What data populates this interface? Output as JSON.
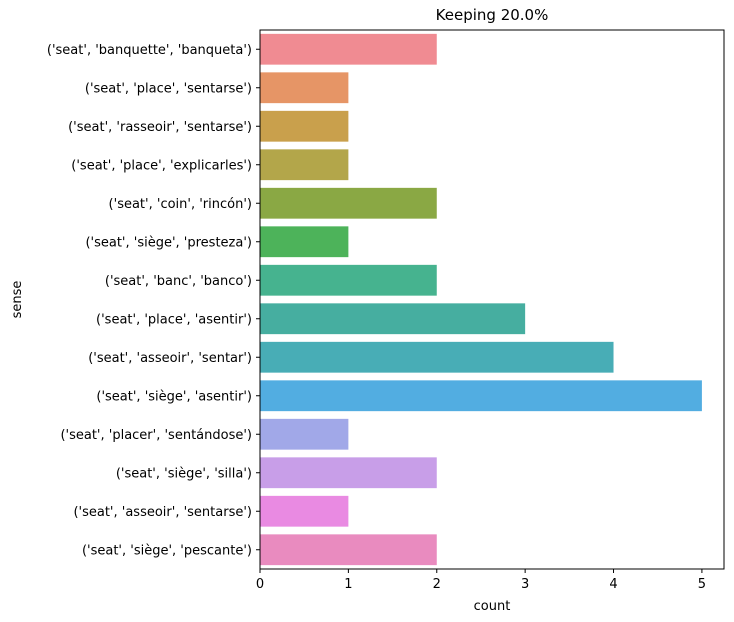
{
  "chart_data": {
    "type": "bar",
    "orientation": "horizontal",
    "title": "Keeping 20.0%",
    "xlabel": "count",
    "ylabel": "sense",
    "xlim": [
      0,
      5.25
    ],
    "xticks": [
      0,
      1,
      2,
      3,
      4,
      5
    ],
    "grid": false,
    "categories": [
      "('seat', 'banquette', 'banqueta')",
      "('seat', 'place', 'sentarse')",
      "('seat', 'rasseoir', 'sentarse')",
      "('seat', 'place', 'explicarles')",
      "('seat', 'coin', 'rincón')",
      "('seat', 'siège', 'presteza')",
      "('seat', 'banc', 'banco')",
      "('seat', 'place', 'asentir')",
      "('seat', 'asseoir', 'sentar')",
      "('seat', 'siège', 'asentir')",
      "('seat', 'placer', 'sentándose')",
      "('seat', 'siège', 'silla')",
      "('seat', 'asseoir', 'sentarse')",
      "('seat', 'siège', 'pescante')"
    ],
    "values": [
      2,
      1,
      1,
      1,
      2,
      1,
      2,
      3,
      4,
      5,
      1,
      2,
      1,
      2
    ],
    "colors": [
      "#f08b92",
      "#e69566",
      "#c9a04c",
      "#b3a64a",
      "#8aa844",
      "#4db35a",
      "#46b38f",
      "#46aea0",
      "#48adb6",
      "#52ade1",
      "#a1a8e8",
      "#c89ee8",
      "#e98ae2",
      "#e98bbf"
    ]
  }
}
